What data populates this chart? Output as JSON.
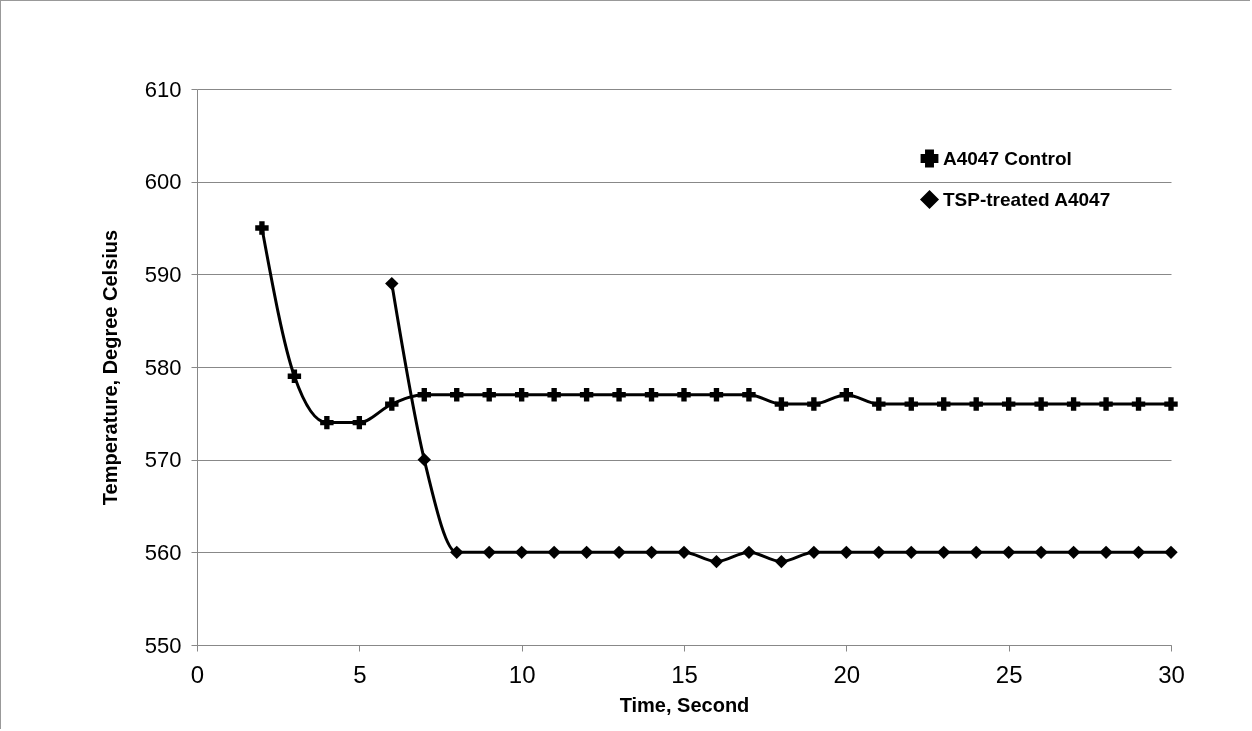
{
  "chart_data": {
    "type": "line",
    "xlabel": "Time, Second",
    "ylabel": "Temperature, Degree Celsius",
    "series": [
      {
        "name": "A4047 Control",
        "color": "#000000",
        "marker": "cross",
        "x": [
          2,
          3,
          4,
          5,
          6,
          7,
          8,
          9,
          10,
          11,
          12,
          13,
          14,
          15,
          16,
          17,
          18,
          19,
          20,
          21,
          22,
          23,
          24,
          25,
          26,
          27,
          28,
          29,
          30
        ],
        "values": [
          595,
          579,
          574,
          574,
          576,
          577,
          577,
          577,
          577,
          577,
          577,
          577,
          577,
          577,
          577,
          577,
          576,
          576,
          577,
          576,
          576,
          576,
          576,
          576,
          576,
          576,
          576,
          576,
          576
        ]
      },
      {
        "name": "TSP-treated A4047",
        "color": "#000000",
        "marker": "diamond",
        "x": [
          6,
          7,
          8,
          9,
          10,
          11,
          12,
          13,
          14,
          15,
          16,
          17,
          18,
          19,
          20,
          21,
          22,
          23,
          24,
          25,
          26,
          27,
          28,
          29,
          30
        ],
        "values": [
          589,
          570,
          560,
          560,
          560,
          560,
          560,
          560,
          560,
          560,
          559,
          560,
          559,
          560,
          560,
          560,
          560,
          560,
          560,
          560,
          560,
          560,
          560,
          560,
          560
        ]
      }
    ],
    "xlim": [
      0,
      30
    ],
    "xticks": [
      0,
      5,
      10,
      15,
      20,
      25,
      30
    ],
    "ylim": [
      550,
      610
    ],
    "yticks": [
      550,
      560,
      570,
      580,
      590,
      600,
      610
    ],
    "grid": "y",
    "legend": "top right",
    "line_style": "solid"
  }
}
